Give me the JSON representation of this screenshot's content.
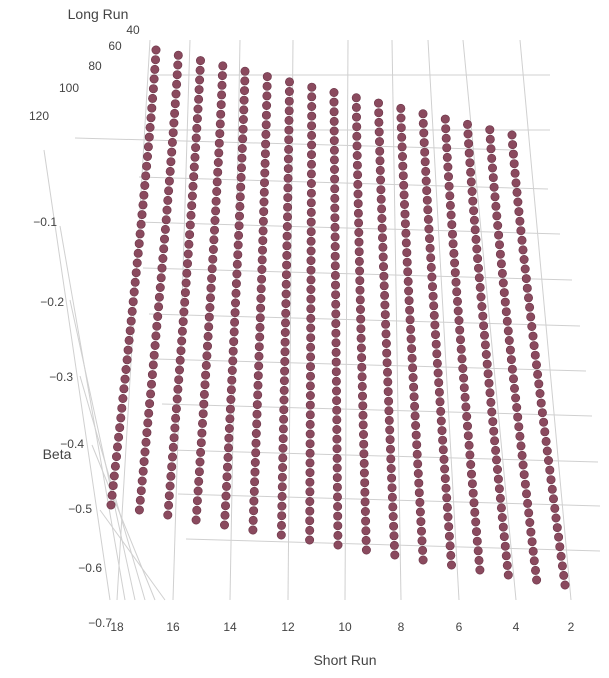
{
  "chart_data": {
    "type": "scatter",
    "subtype": "3d-scatter",
    "x_axis": {
      "title": "Short Run",
      "ticks": [
        "2",
        "4",
        "6",
        "8",
        "10",
        "12",
        "14",
        "16",
        "18"
      ],
      "range": [
        2,
        18
      ]
    },
    "y_axis": {
      "title": "Long Run",
      "ticks": [
        "40",
        "60",
        "80",
        "100",
        "120"
      ],
      "range": [
        30,
        125
      ]
    },
    "z_axis": {
      "title": "Beta",
      "ticks": [
        "−0.1",
        "−0.2",
        "−0.3",
        "−0.4",
        "−0.5",
        "−0.6",
        "−0.7"
      ],
      "range": [
        -0.7,
        0
      ]
    },
    "marker_color": "#8a4a5e",
    "grid": true,
    "series": [
      {
        "short_run": 2,
        "long_run": [
          30,
          125
        ],
        "beta": [
          -0.09,
          -0.66
        ]
      },
      {
        "short_run": 3,
        "long_run": [
          30,
          125
        ],
        "beta": [
          -0.09,
          -0.65
        ]
      },
      {
        "short_run": 4,
        "long_run": [
          30,
          125
        ],
        "beta": [
          -0.09,
          -0.64
        ]
      },
      {
        "short_run": 5,
        "long_run": [
          30,
          125
        ],
        "beta": [
          -0.09,
          -0.63
        ]
      },
      {
        "short_run": 6,
        "long_run": [
          30,
          125
        ],
        "beta": [
          -0.09,
          -0.62
        ]
      },
      {
        "short_run": 7,
        "long_run": [
          30,
          125
        ],
        "beta": [
          -0.09,
          -0.61
        ]
      },
      {
        "short_run": 8,
        "long_run": [
          30,
          125
        ],
        "beta": [
          -0.09,
          -0.6
        ]
      },
      {
        "short_run": 9,
        "long_run": [
          30,
          125
        ],
        "beta": [
          -0.09,
          -0.59
        ]
      },
      {
        "short_run": 10,
        "long_run": [
          30,
          125
        ],
        "beta": [
          -0.09,
          -0.58
        ]
      },
      {
        "short_run": 11,
        "long_run": [
          30,
          125
        ],
        "beta": [
          -0.09,
          -0.57
        ]
      },
      {
        "short_run": 12,
        "long_run": [
          30,
          125
        ],
        "beta": [
          -0.09,
          -0.56
        ]
      },
      {
        "short_run": 13,
        "long_run": [
          30,
          125
        ],
        "beta": [
          -0.09,
          -0.55
        ]
      },
      {
        "short_run": 14,
        "long_run": [
          30,
          125
        ],
        "beta": [
          -0.09,
          -0.54
        ]
      },
      {
        "short_run": 15,
        "long_run": [
          30,
          125
        ],
        "beta": [
          -0.09,
          -0.53
        ]
      },
      {
        "short_run": 16,
        "long_run": [
          30,
          125
        ],
        "beta": [
          -0.09,
          -0.52
        ]
      },
      {
        "short_run": 17,
        "long_run": [
          30,
          125
        ],
        "beta": [
          -0.09,
          -0.51
        ]
      },
      {
        "short_run": 18,
        "long_run": [
          30,
          125
        ],
        "beta": [
          -0.09,
          -0.5
        ]
      }
    ]
  }
}
